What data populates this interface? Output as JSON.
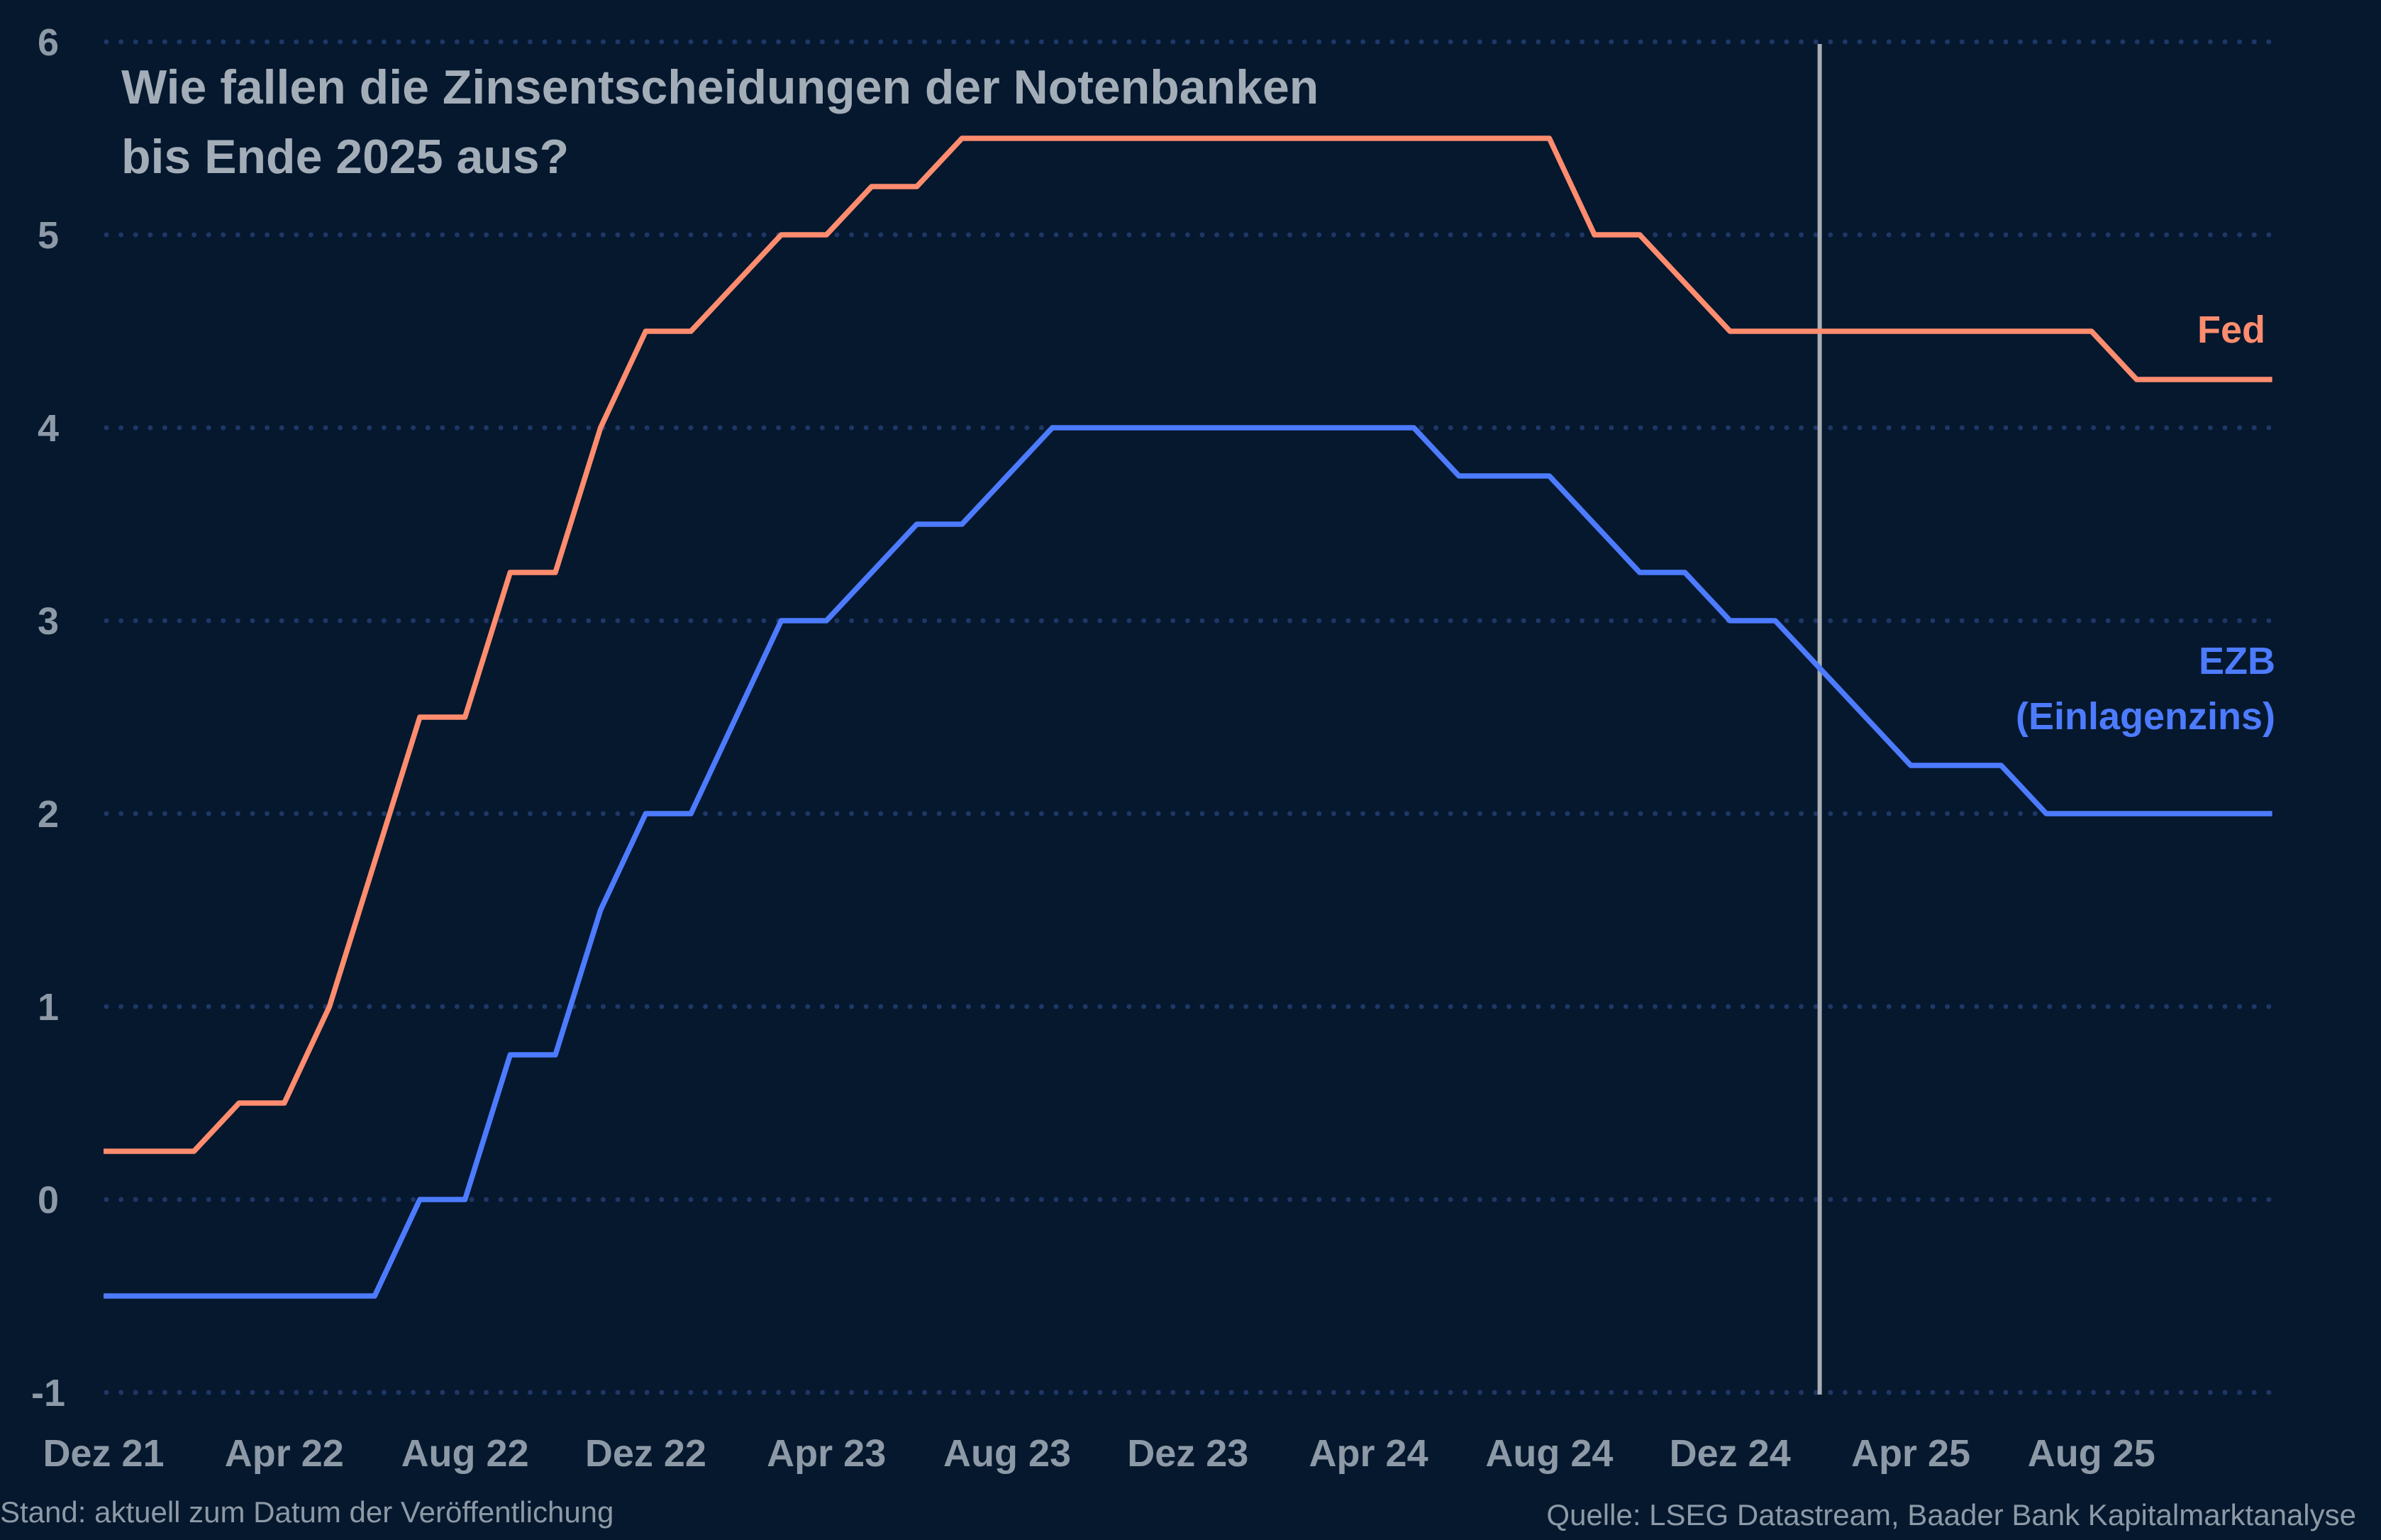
{
  "chart_data": {
    "type": "line",
    "title_lines": [
      "Wie fallen die Zinsentscheidungen der Notenbanken",
      "bis Ende 2025 aus?"
    ],
    "xlabel": "",
    "ylabel": "",
    "ylim": [
      -1,
      6
    ],
    "y_ticks": [
      "-1",
      "0",
      "1",
      "2",
      "3",
      "4",
      "5",
      "6"
    ],
    "x": [
      "2021-12",
      "2022-01",
      "2022-02",
      "2022-03",
      "2022-04",
      "2022-05",
      "2022-06",
      "2022-07",
      "2022-08",
      "2022-09",
      "2022-10",
      "2022-11",
      "2022-12",
      "2023-01",
      "2023-02",
      "2023-03",
      "2023-04",
      "2023-05",
      "2023-06",
      "2023-07",
      "2023-08",
      "2023-09",
      "2023-10",
      "2023-11",
      "2023-12",
      "2024-01",
      "2024-02",
      "2024-03",
      "2024-04",
      "2024-05",
      "2024-06",
      "2024-07",
      "2024-08",
      "2024-09",
      "2024-10",
      "2024-11",
      "2024-12",
      "2025-01",
      "2025-02",
      "2025-03",
      "2025-04",
      "2025-05",
      "2025-06",
      "2025-07",
      "2025-08",
      "2025-09",
      "2025-10",
      "2025-11",
      "2025-12"
    ],
    "x_tick_labels": [
      {
        "label": "Dez 21",
        "x": "2021-12"
      },
      {
        "label": "Apr 22",
        "x": "2022-04"
      },
      {
        "label": "Aug 22",
        "x": "2022-08"
      },
      {
        "label": "Dez 22",
        "x": "2022-12"
      },
      {
        "label": "Apr 23",
        "x": "2023-04"
      },
      {
        "label": "Aug 23",
        "x": "2023-08"
      },
      {
        "label": "Dez 23",
        "x": "2023-12"
      },
      {
        "label": "Apr 24",
        "x": "2024-04"
      },
      {
        "label": "Aug 24",
        "x": "2024-08"
      },
      {
        "label": "Dez 24",
        "x": "2024-12"
      },
      {
        "label": "Apr 25",
        "x": "2025-04"
      },
      {
        "label": "Aug 25",
        "x": "2025-08"
      }
    ],
    "series": [
      {
        "name": "Fed",
        "color": "#ff8c6e",
        "values": [
          0.25,
          0.25,
          0.25,
          0.5,
          0.5,
          1.0,
          1.75,
          2.5,
          2.5,
          3.25,
          3.25,
          4.0,
          4.5,
          4.5,
          4.75,
          5.0,
          5.0,
          5.25,
          5.25,
          5.5,
          5.5,
          5.5,
          5.5,
          5.5,
          5.5,
          5.5,
          5.5,
          5.5,
          5.5,
          5.5,
          5.5,
          5.5,
          5.5,
          5.0,
          5.0,
          4.75,
          4.5,
          4.5,
          4.5,
          4.5,
          4.5,
          4.5,
          4.5,
          4.5,
          4.5,
          4.25,
          4.25,
          4.25,
          4.25
        ]
      },
      {
        "name": "EZB",
        "name_line2": "(Einlagenzins)",
        "color": "#4d7bff",
        "values": [
          -0.5,
          -0.5,
          -0.5,
          -0.5,
          -0.5,
          -0.5,
          -0.5,
          0.0,
          0.0,
          0.75,
          0.75,
          1.5,
          2.0,
          2.0,
          2.5,
          3.0,
          3.0,
          3.25,
          3.5,
          3.5,
          3.75,
          4.0,
          4.0,
          4.0,
          4.0,
          4.0,
          4.0,
          4.0,
          4.0,
          4.0,
          3.75,
          3.75,
          3.75,
          3.5,
          3.25,
          3.25,
          3.0,
          3.0,
          2.75,
          2.5,
          2.25,
          2.25,
          2.25,
          2.0,
          2.0,
          2.0,
          2.0,
          2.0,
          2.0
        ]
      }
    ],
    "vertical_marker_x": "2025-02",
    "vertical_marker_color": "#a8aeb4",
    "grid": "horizontal dotted",
    "grid_color": "#1f3766",
    "background_color": "#05182e",
    "footer_left": "Stand: aktuell zum Datum der Veröffentlichung",
    "footer_right": "Quelle: LSEG Datastream, Baader Bank Kapitalmarktanalyse"
  }
}
